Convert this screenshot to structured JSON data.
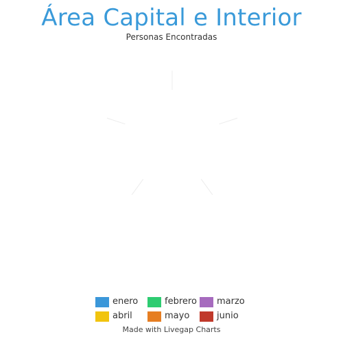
{
  "chart_data": {
    "type": "radar",
    "title": "Área Capital e Interior",
    "subtitle": "Personas Encontradas",
    "axes": [
      "",
      "",
      "",
      "",
      ""
    ],
    "series": [
      {
        "name": "enero",
        "color": "#3b97d9",
        "values": [
          0,
          0,
          0,
          0,
          0
        ]
      },
      {
        "name": "febrero",
        "color": "#2ecc71",
        "values": [
          0,
          0,
          0,
          0,
          0
        ]
      },
      {
        "name": "marzo",
        "color": "#a66bbe",
        "values": [
          0,
          0,
          0,
          0,
          0
        ]
      },
      {
        "name": "abril",
        "color": "#f1c40f",
        "values": [
          0,
          0,
          0,
          0,
          0
        ]
      },
      {
        "name": "mayo",
        "color": "#e67e22",
        "values": [
          0,
          0,
          0,
          0,
          0
        ]
      },
      {
        "name": "junio",
        "color": "#c0392b",
        "values": [
          0,
          0,
          0,
          0,
          0
        ]
      }
    ],
    "grid": false,
    "legend_position": "bottom"
  },
  "credit": "Made with Livegap Charts"
}
